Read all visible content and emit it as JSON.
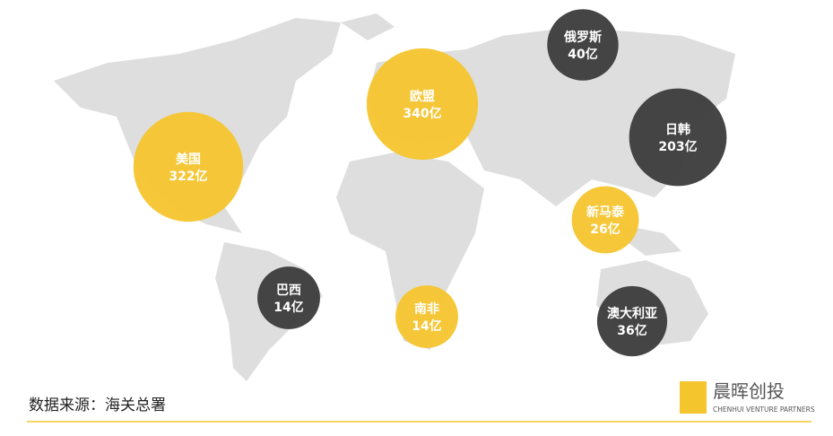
{
  "chart_data": {
    "type": "bubble",
    "categories": [
      "美国",
      "欧盟",
      "俄罗斯",
      "日韩",
      "新马泰",
      "巴西",
      "南非",
      "澳大利亚"
    ],
    "values": [
      322,
      340,
      40,
      203,
      26,
      14,
      14,
      36
    ],
    "value_labels": [
      "322亿",
      "340亿",
      "40亿",
      "203亿",
      "26亿",
      "14亿",
      "14亿",
      "36亿"
    ],
    "colors": [
      "#F5C52E",
      "#F5C52E",
      "#3B3B3B",
      "#3B3B3B",
      "#F5C52E",
      "#3B3B3B",
      "#F5C52E",
      "#3B3B3B"
    ]
  },
  "source": "数据来源：海关总署",
  "logo": {
    "name": "晨晖创投",
    "tagline": "CHENHUI VENTURE PARTNERS"
  }
}
